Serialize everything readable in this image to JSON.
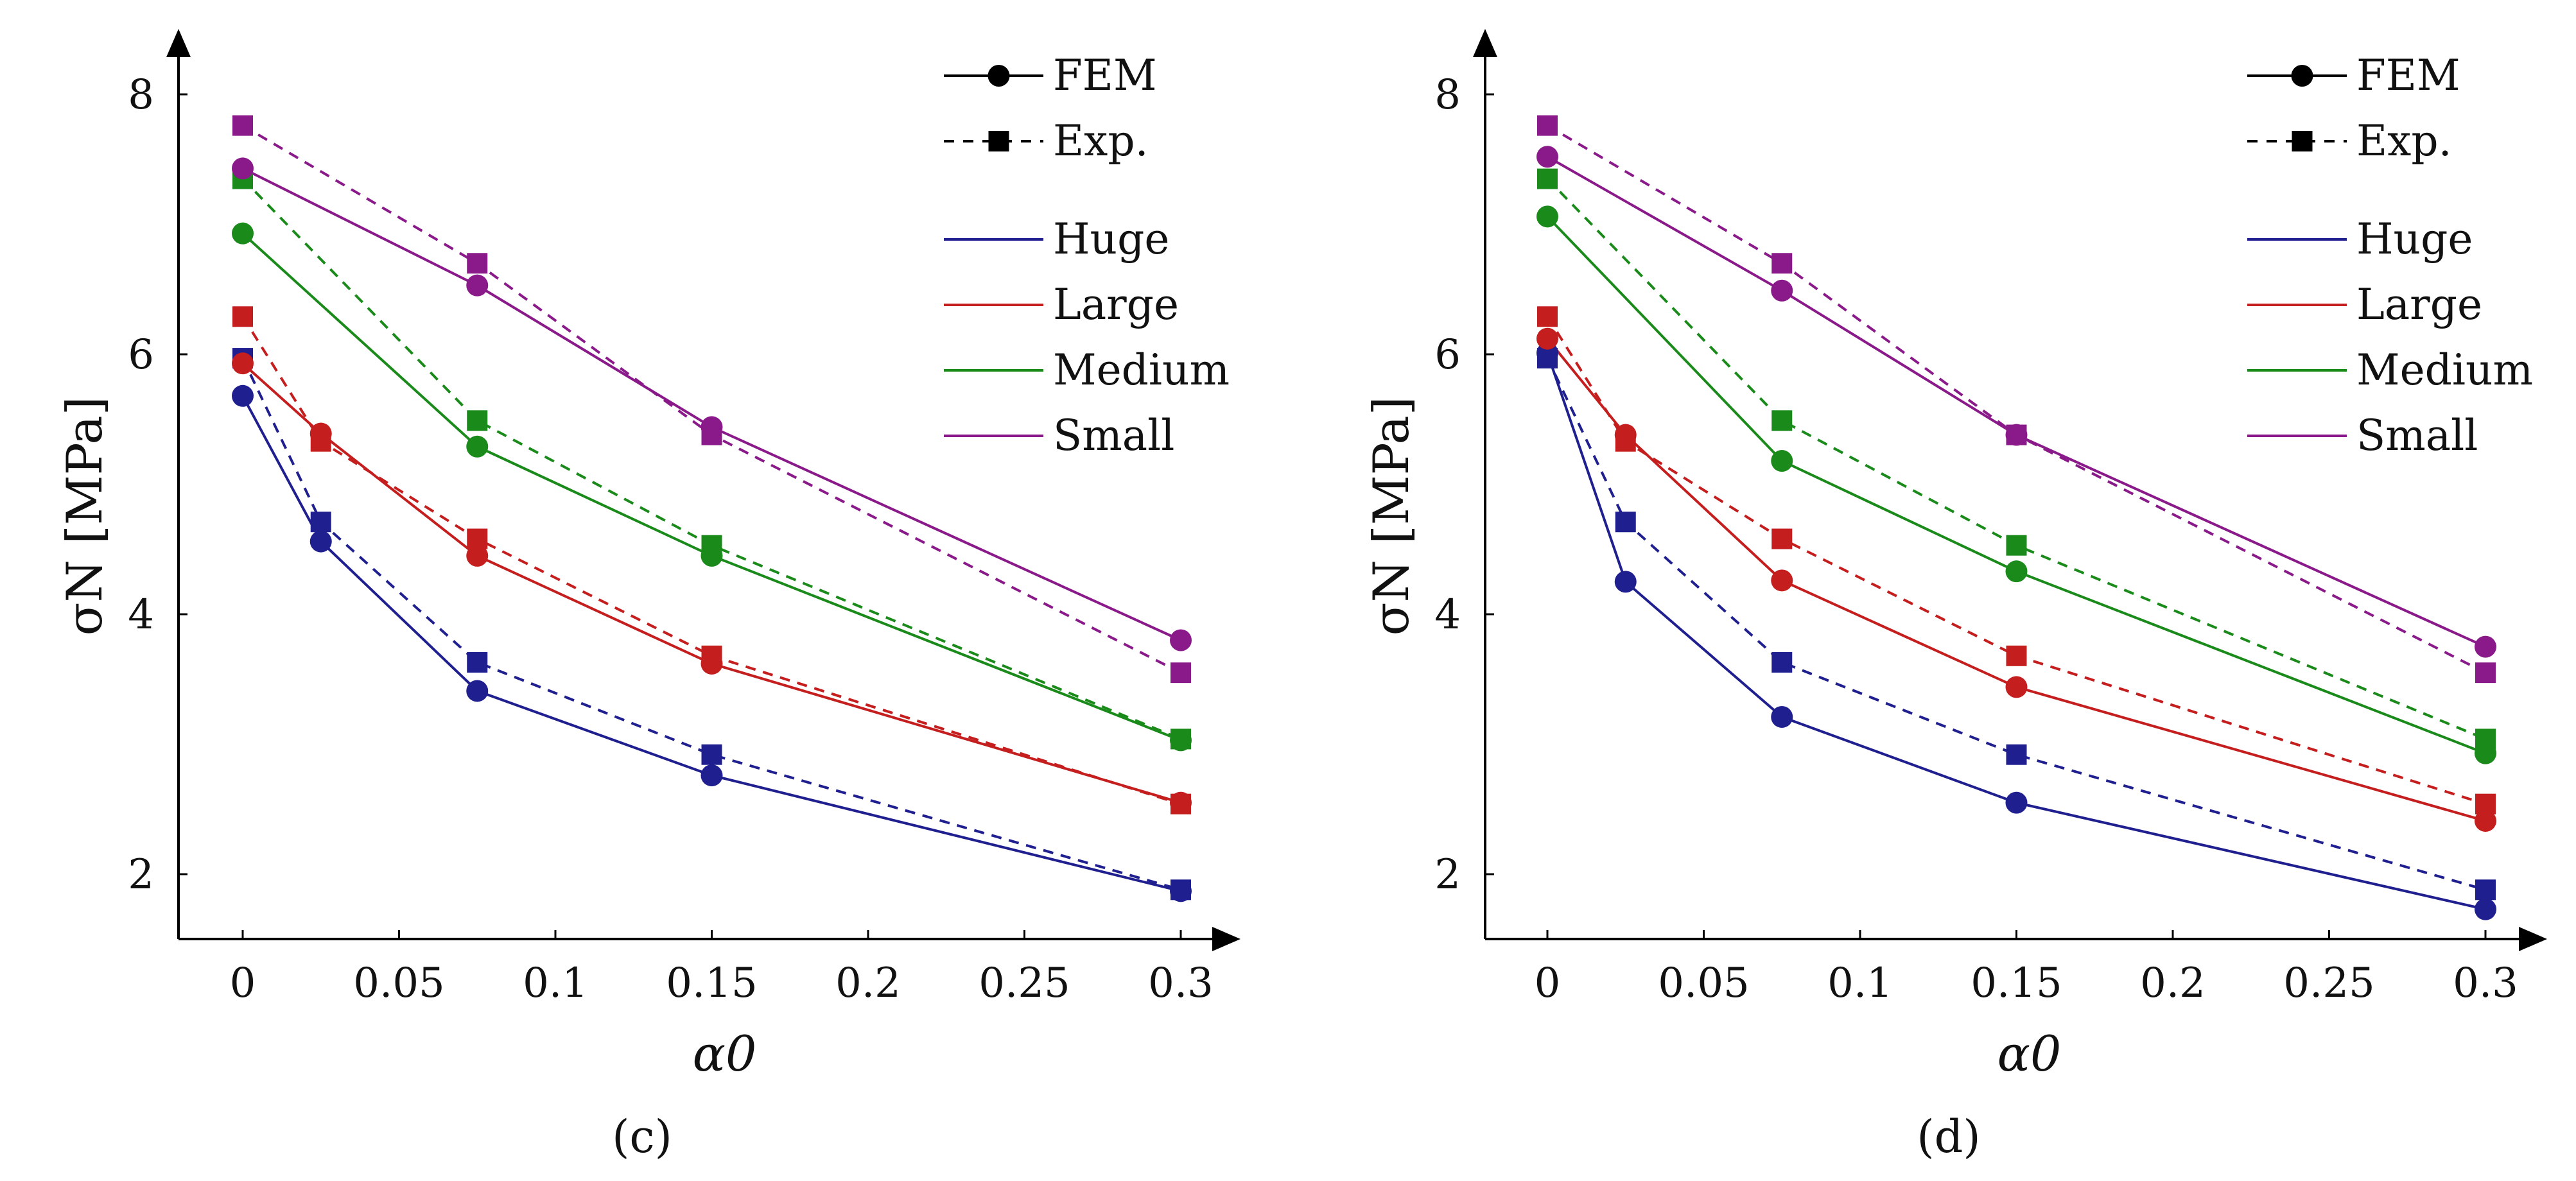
{
  "chart_data": [
    {
      "type": "line",
      "caption": "(c)",
      "caption_letter": "c",
      "xlabel": "α0",
      "ylabel": "σN [MPa]",
      "x": [
        0,
        0.025,
        0.075,
        0.15,
        0.3
      ],
      "xlim": [
        -0.02,
        0.315
      ],
      "ylim": [
        1.5,
        8.5
      ],
      "xticks": [
        0,
        0.05,
        0.1,
        0.15,
        0.2,
        0.25,
        0.3
      ],
      "xtick_labels": [
        "0",
        "0.05",
        "0.1",
        "0.15",
        "0.2",
        "0.25",
        "0.3"
      ],
      "yticks": [
        2,
        4,
        6,
        8
      ],
      "ytick_labels": [
        "2",
        "4",
        "6",
        "8"
      ],
      "legend": {
        "position": "top-right",
        "style_entries": [
          {
            "label": "FEM",
            "line": "solid",
            "marker": "circle"
          },
          {
            "label": "Exp.",
            "line": "dashed",
            "marker": "square"
          }
        ],
        "color_entries": [
          {
            "label": "Huge",
            "color": "#1f1f8f"
          },
          {
            "label": "Large",
            "color": "#c41e1e"
          },
          {
            "label": "Medium",
            "color": "#1a8a1a"
          },
          {
            "label": "Small",
            "color": "#8a1a8a"
          }
        ]
      },
      "series": [
        {
          "name": "Huge FEM",
          "group": "Huge",
          "kind": "FEM",
          "color": "#1f1f8f",
          "values": [
            5.68,
            4.56,
            3.41,
            2.76,
            1.87
          ]
        },
        {
          "name": "Huge Exp.",
          "group": "Huge",
          "kind": "Exp.",
          "color": "#1f1f8f",
          "values": [
            5.97,
            4.71,
            3.63,
            2.92,
            1.88
          ]
        },
        {
          "name": "Large FEM",
          "group": "Large",
          "kind": "FEM",
          "color": "#c41e1e",
          "values": [
            5.93,
            5.39,
            4.45,
            3.62,
            2.55
          ]
        },
        {
          "name": "Large Exp.",
          "group": "Large",
          "kind": "Exp.",
          "color": "#c41e1e",
          "values": [
            6.29,
            5.33,
            4.58,
            3.68,
            2.54
          ]
        },
        {
          "name": "Medium FEM",
          "group": "Medium",
          "kind": "FEM",
          "color": "#1a8a1a",
          "values": [
            6.93,
            null,
            5.29,
            4.45,
            3.03
          ]
        },
        {
          "name": "Medium Exp.",
          "group": "Medium",
          "kind": "Exp.",
          "color": "#1a8a1a",
          "values": [
            7.35,
            null,
            5.49,
            4.53,
            3.04
          ]
        },
        {
          "name": "Small FEM",
          "group": "Small",
          "kind": "FEM",
          "color": "#8a1a8a",
          "values": [
            7.43,
            null,
            6.53,
            5.44,
            3.8
          ]
        },
        {
          "name": "Small Exp.",
          "group": "Small",
          "kind": "Exp.",
          "color": "#8a1a8a",
          "values": [
            7.76,
            null,
            6.7,
            5.38,
            3.55
          ]
        }
      ]
    },
    {
      "type": "line",
      "caption": "(d)",
      "caption_letter": "d",
      "xlabel": "α0",
      "ylabel": "σN [MPa]",
      "x": [
        0,
        0.025,
        0.075,
        0.15,
        0.3
      ],
      "xlim": [
        -0.02,
        0.315
      ],
      "ylim": [
        1.5,
        8.5
      ],
      "xticks": [
        0,
        0.05,
        0.1,
        0.15,
        0.2,
        0.25,
        0.3
      ],
      "xtick_labels": [
        "0",
        "0.05",
        "0.1",
        "0.15",
        "0.2",
        "0.25",
        "0.3"
      ],
      "yticks": [
        2,
        4,
        6,
        8
      ],
      "ytick_labels": [
        "2",
        "4",
        "6",
        "8"
      ],
      "legend": {
        "position": "top-right",
        "style_entries": [
          {
            "label": "FEM",
            "line": "solid",
            "marker": "circle"
          },
          {
            "label": "Exp.",
            "line": "dashed",
            "marker": "square"
          }
        ],
        "color_entries": [
          {
            "label": "Huge",
            "color": "#1f1f8f"
          },
          {
            "label": "Large",
            "color": "#c41e1e"
          },
          {
            "label": "Medium",
            "color": "#1a8a1a"
          },
          {
            "label": "Small",
            "color": "#8a1a8a"
          }
        ]
      },
      "series": [
        {
          "name": "Huge FEM",
          "group": "Huge",
          "kind": "FEM",
          "color": "#1f1f8f",
          "values": [
            6.01,
            4.25,
            3.21,
            2.55,
            1.73
          ]
        },
        {
          "name": "Huge Exp.",
          "group": "Huge",
          "kind": "Exp.",
          "color": "#1f1f8f",
          "values": [
            5.97,
            4.71,
            3.63,
            2.92,
            1.88
          ]
        },
        {
          "name": "Large FEM",
          "group": "Large",
          "kind": "FEM",
          "color": "#c41e1e",
          "values": [
            6.12,
            5.38,
            4.26,
            3.44,
            2.41
          ]
        },
        {
          "name": "Large Exp.",
          "group": "Large",
          "kind": "Exp.",
          "color": "#c41e1e",
          "values": [
            6.29,
            5.33,
            4.58,
            3.68,
            2.54
          ]
        },
        {
          "name": "Medium FEM",
          "group": "Medium",
          "kind": "FEM",
          "color": "#1a8a1a",
          "values": [
            7.06,
            null,
            5.18,
            4.33,
            2.93
          ]
        },
        {
          "name": "Medium Exp.",
          "group": "Medium",
          "kind": "Exp.",
          "color": "#1a8a1a",
          "values": [
            7.35,
            null,
            5.49,
            4.53,
            3.04
          ]
        },
        {
          "name": "Small FEM",
          "group": "Small",
          "kind": "FEM",
          "color": "#8a1a8a",
          "values": [
            7.52,
            null,
            6.49,
            5.38,
            3.75
          ]
        },
        {
          "name": "Small Exp.",
          "group": "Small",
          "kind": "Exp.",
          "color": "#8a1a8a",
          "values": [
            7.76,
            null,
            6.7,
            5.38,
            3.55
          ]
        }
      ]
    }
  ]
}
